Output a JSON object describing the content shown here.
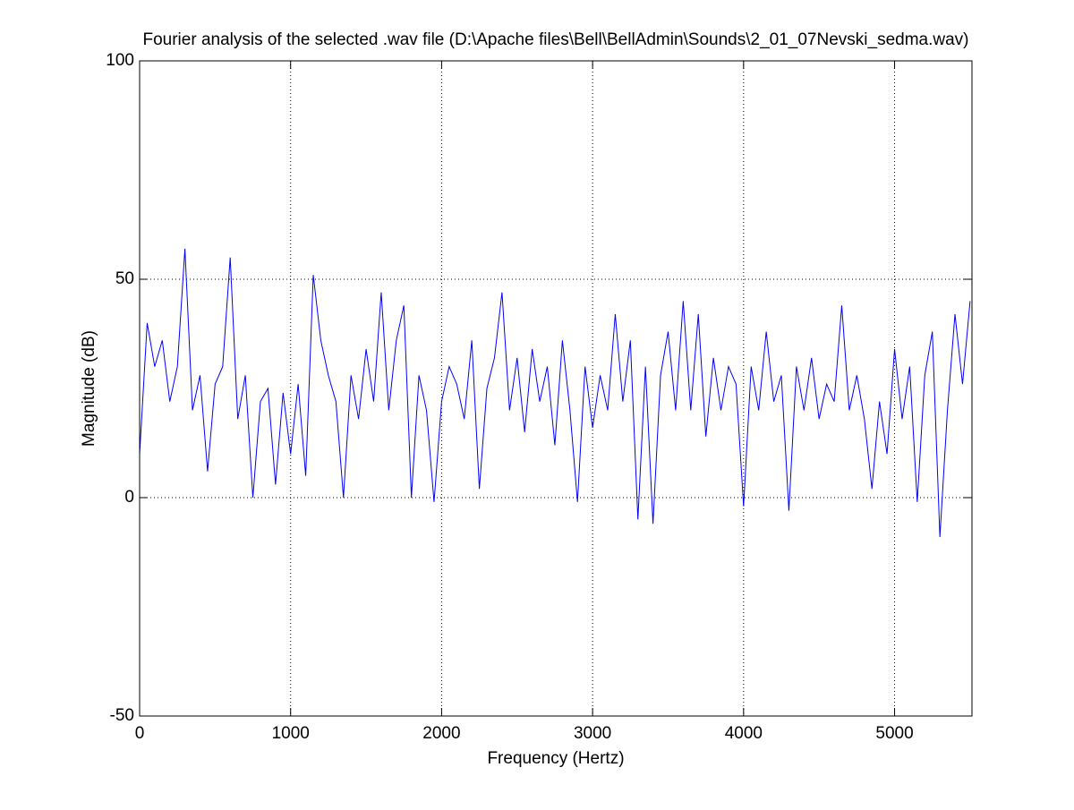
{
  "chart_data": {
    "type": "line",
    "title": "Fourier analysis of the selected .wav file (D:\\Apache files\\Bell\\BellAdmin\\Sounds\\2_01_07Nevski_sedma.wav)",
    "xlabel": "Frequency (Hertz)",
    "ylabel": "Magnitude (dB)",
    "color": "#0000ff",
    "grid": true,
    "xlim": [
      0,
      5512.5
    ],
    "ylim": [
      -50,
      100
    ],
    "xticks": [
      0,
      1000,
      2000,
      3000,
      4000,
      5000
    ],
    "yticks": [
      -50,
      0,
      50,
      100
    ],
    "x": [
      0,
      50,
      100,
      150,
      200,
      250,
      300,
      350,
      400,
      450,
      500,
      550,
      600,
      650,
      700,
      750,
      800,
      850,
      900,
      950,
      1000,
      1050,
      1100,
      1150,
      1200,
      1250,
      1300,
      1350,
      1400,
      1450,
      1500,
      1550,
      1600,
      1650,
      1700,
      1750,
      1800,
      1850,
      1900,
      1950,
      2000,
      2050,
      2100,
      2150,
      2200,
      2250,
      2300,
      2350,
      2400,
      2450,
      2500,
      2550,
      2600,
      2650,
      2700,
      2750,
      2800,
      2850,
      2900,
      2950,
      3000,
      3050,
      3100,
      3150,
      3200,
      3250,
      3300,
      3350,
      3400,
      3450,
      3500,
      3550,
      3600,
      3650,
      3700,
      3750,
      3800,
      3850,
      3900,
      3950,
      4000,
      4050,
      4100,
      4150,
      4200,
      4250,
      4300,
      4350,
      4400,
      4450,
      4500,
      4550,
      4600,
      4650,
      4700,
      4750,
      4800,
      4850,
      4900,
      4950,
      5000,
      5050,
      5100,
      5150,
      5200,
      5250,
      5300,
      5350,
      5400,
      5450,
      5500
    ],
    "values": [
      10,
      40,
      30,
      36,
      22,
      30,
      57,
      20,
      28,
      6,
      26,
      30,
      55,
      18,
      28,
      0,
      22,
      25,
      3,
      24,
      10,
      26,
      5,
      51,
      36,
      28,
      22,
      0,
      28,
      18,
      34,
      22,
      47,
      20,
      36,
      44,
      0,
      28,
      20,
      -1,
      22,
      30,
      26,
      18,
      36,
      2,
      25,
      32,
      47,
      20,
      32,
      15,
      34,
      22,
      30,
      12,
      36,
      20,
      -1,
      30,
      16,
      28,
      20,
      42,
      22,
      36,
      -5,
      30,
      -6,
      28,
      38,
      20,
      45,
      20,
      42,
      14,
      32,
      20,
      30,
      26,
      -2,
      30,
      20,
      38,
      22,
      28,
      -3,
      30,
      20,
      32,
      18,
      26,
      22,
      44,
      20,
      28,
      18,
      2,
      22,
      10,
      34,
      18,
      30,
      -1,
      28,
      38,
      -9,
      20,
      42,
      26,
      45
    ]
  }
}
